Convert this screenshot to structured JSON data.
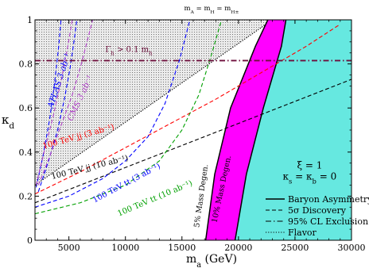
{
  "chart_data": {
    "type": "line",
    "title": "m_A = m_H = m_H±",
    "title_parts": {
      "m": "m",
      "A": "A",
      "H": "H",
      "Hpm": "H±",
      "eq": " = "
    },
    "xlabel": "m_a (GeV)",
    "xlabel_parts": {
      "m": "m",
      "sub": "a",
      "unit": " (GeV)"
    },
    "ylabel": "κ_d",
    "ylabel_parts": {
      "kappa": "κ",
      "sub": "d"
    },
    "xlim": [
      2000,
      30000
    ],
    "ylim": [
      0,
      1
    ],
    "x_ticks": [
      "5000",
      "10000",
      "15000",
      "20000",
      "25000",
      "30000"
    ],
    "x_tick_values": [
      5000,
      10000,
      15000,
      20000,
      25000,
      30000
    ],
    "y_ticks": [
      "0",
      "0.2",
      "0.4",
      "0.6",
      "0.8",
      "1"
    ],
    "y_tick_values": [
      0,
      0.2,
      0.4,
      0.6,
      0.8,
      1.0
    ],
    "grid": false,
    "colors": {
      "flavor_fill": "#e0e0e0",
      "mass_degen_5": "#ff00ff",
      "mass_degen_10": "#66e8e0",
      "gamma_line": "#6e0f3c",
      "atlas": "#0000ff",
      "cms": "#b040c8",
      "jj_3": "#ff0000",
      "jj_10": "#000000",
      "tt_3": "#0000ff",
      "tt_10": "#00a000"
    },
    "regions": [
      {
        "name": "Flavor",
        "style": "dotted-fill",
        "boundary": [
          [
            2000,
            0.25
          ],
          [
            23000,
            1.0
          ]
        ]
      },
      {
        "name": "5% Mass Degen.",
        "color": "mass_degen_5",
        "left_edge": [
          [
            17100,
            0
          ],
          [
            17900,
            0.3
          ],
          [
            19300,
            0.6
          ],
          [
            21500,
            0.88
          ],
          [
            22600,
            1.0
          ]
        ],
        "right_edge": [
          [
            19700,
            0
          ],
          [
            20700,
            0.3
          ],
          [
            22200,
            0.6
          ],
          [
            23800,
            0.88
          ],
          [
            24200,
            1.0
          ]
        ]
      },
      {
        "name": "10% Mass Degen.",
        "color": "mass_degen_10",
        "left_edge": [
          [
            19700,
            0
          ],
          [
            20700,
            0.3
          ],
          [
            22200,
            0.6
          ],
          [
            23800,
            0.88
          ],
          [
            24200,
            1.0
          ]
        ]
      }
    ],
    "series": [
      {
        "name": "ATLAS 3 ab⁻¹",
        "style": "dash",
        "color": "atlas",
        "x": [
          2300,
          3200,
          4000,
          4600,
          5100,
          5500,
          5700
        ],
        "y": [
          0.22,
          0.36,
          0.5,
          0.64,
          0.78,
          0.92,
          1.0
        ]
      },
      {
        "name": "ATLAS 3 ab⁻¹ (b)",
        "style": "dash",
        "color": "atlas",
        "x": [
          2100,
          2700,
          3300,
          3700,
          4100,
          4300
        ],
        "y": [
          0.24,
          0.38,
          0.55,
          0.7,
          0.88,
          1.0
        ]
      },
      {
        "name": "CMS 3 ab⁻¹",
        "style": "dash",
        "color": "cms",
        "x": [
          2300,
          3300,
          4300,
          5300,
          6100,
          6700,
          7100
        ],
        "y": [
          0.25,
          0.38,
          0.52,
          0.66,
          0.8,
          0.92,
          1.0
        ]
      },
      {
        "name": "CMS 3 ab⁻¹ (b)",
        "style": "dash",
        "color": "cms",
        "x": [
          2100,
          2800,
          3600,
          4300,
          4900,
          5300
        ],
        "y": [
          0.25,
          0.4,
          0.56,
          0.72,
          0.88,
          1.0
        ]
      },
      {
        "name": "100 TeV jj (3 ab⁻¹)",
        "style": "dash",
        "color": "jj_3",
        "x": [
          2000,
          6000,
          10000,
          14000,
          18000,
          22000,
          26000,
          29000
        ],
        "y": [
          0.21,
          0.31,
          0.42,
          0.53,
          0.64,
          0.76,
          0.88,
          0.98
        ]
      },
      {
        "name": "100 TeV jj (10 ab⁻¹)",
        "style": "dash",
        "color": "jj_10",
        "x": [
          2000,
          6000,
          10000,
          14000,
          18000,
          22000,
          26000,
          30000
        ],
        "y": [
          0.17,
          0.25,
          0.33,
          0.41,
          0.49,
          0.57,
          0.65,
          0.73
        ]
      },
      {
        "name": "100 TeV tt (3 ab⁻¹)",
        "style": "dash",
        "color": "tt_3",
        "x": [
          2000,
          5000,
          8000,
          10000,
          12000,
          13500,
          14800,
          15700
        ],
        "y": [
          0.15,
          0.2,
          0.28,
          0.36,
          0.47,
          0.62,
          0.82,
          1.0
        ]
      },
      {
        "name": "100 TeV tt (10 ab⁻¹)",
        "style": "dash",
        "color": "tt_10",
        "x": [
          2000,
          6000,
          10000,
          13000,
          15000,
          16500,
          17600,
          18500
        ],
        "y": [
          0.12,
          0.17,
          0.25,
          0.36,
          0.5,
          0.66,
          0.84,
          1.0
        ]
      },
      {
        "name": "Γ_h > 0.1 m_h",
        "style": "dashdot",
        "color": "gamma_line",
        "x": [
          2000,
          30000
        ],
        "y": [
          0.815,
          0.815
        ]
      }
    ],
    "annotations": {
      "atlas_label": "ATLAS 3 ab⁻¹",
      "cms_label": "CMS 3 ab⁻¹",
      "gamma_label": "Γ_h > 0.1 m_h",
      "gamma_parts": {
        "gamma": "Γ",
        "sub": "h",
        "mid": " > 0.1 m",
        "sub2": "h"
      },
      "jj3_label": "100 TeV jj (3 ab⁻¹)",
      "jj10_label": "100 TeV jj (10 ab⁻¹)",
      "tt3_label": "100 TeV tt (3 ab⁻¹)",
      "tt10_label": "100 TeV tt (10 ab⁻¹)",
      "md5_label": "5% Mass Degen.",
      "md10_label": "10% Mass Degen.",
      "xi": "ξ = 1",
      "kappa_sb": "κ_s = κ_b = 0",
      "kappa_parts": {
        "k1": "κ",
        "s": "s",
        "eq1": " = κ",
        "b": "b",
        "eq2": " = 0"
      }
    },
    "legend": {
      "placement": "bottom-right",
      "entries": [
        {
          "label": "Baryon Asymmetry",
          "style": "solid"
        },
        {
          "label": "5σ Discovery",
          "style": "dash"
        },
        {
          "label": "95% CL Exclusion",
          "style": "dashdot"
        },
        {
          "label": "Flavor",
          "style": "dotted"
        }
      ]
    }
  }
}
